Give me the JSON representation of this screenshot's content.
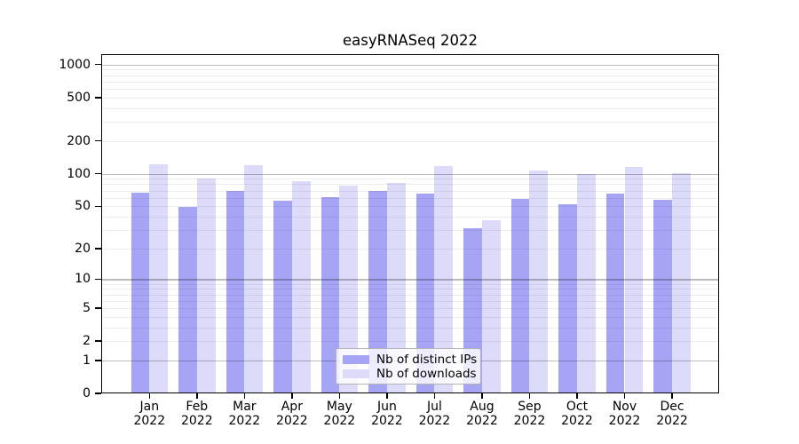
{
  "title": "easyRNASeq 2022",
  "chart_data": {
    "type": "bar",
    "title": "easyRNASeq 2022",
    "categories": [
      "Jan 2022",
      "Feb 2022",
      "Mar 2022",
      "Apr 2022",
      "May 2022",
      "Jun 2022",
      "Jul 2022",
      "Aug 2022",
      "Sep 2022",
      "Oct 2022",
      "Nov 2022",
      "Dec 2022"
    ],
    "series": [
      {
        "name": "Nb of distinct IPs",
        "color": "#a6a4f4",
        "values": [
          67,
          49,
          70,
          56,
          61,
          69,
          66,
          31,
          58,
          52,
          66,
          57
        ]
      },
      {
        "name": "Nb of downloads",
        "color": "#dcdbf9",
        "values": [
          123,
          91,
          119,
          85,
          78,
          82,
          117,
          37,
          108,
          99,
          115,
          101
        ]
      }
    ],
    "xlabel": "",
    "ylabel": "",
    "yscale": "log1p",
    "yticks": [
      1000,
      500,
      200,
      100,
      50,
      20,
      10,
      5,
      2,
      1,
      0
    ],
    "ylim": [
      0,
      1250
    ],
    "grid": {
      "orientation": "horizontal",
      "major_lines": [
        1,
        10,
        100,
        1000
      ],
      "minor_lines": "2-9 per decade"
    },
    "legend": {
      "position": "bottom-center",
      "entries": [
        "Nb of distinct IPs",
        "Nb of downloads"
      ]
    }
  },
  "colors": {
    "bar_ips": "#a6a4f4",
    "bar_downloads": "#dcdbf9",
    "axis": "#000000",
    "major_grid": "#bdbdbd",
    "minor_grid": "#ececec",
    "legend_border": "#b3b3b3"
  }
}
